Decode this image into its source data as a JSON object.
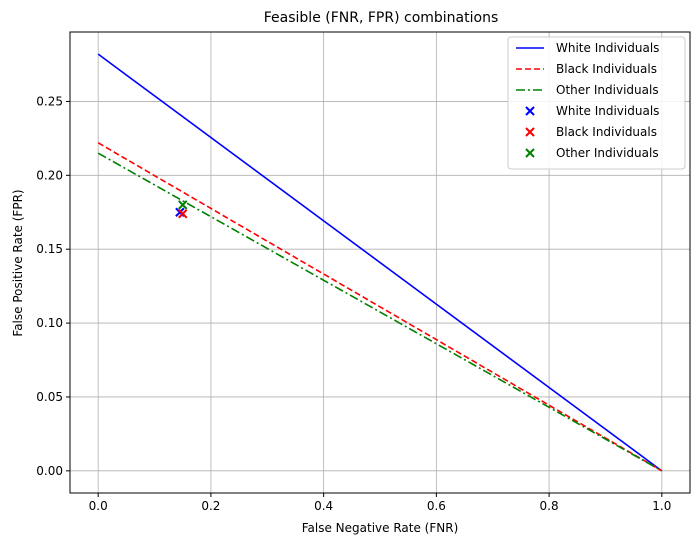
{
  "chart_data": {
    "type": "line",
    "title": "Feasible (FNR, FPR) combinations",
    "xlabel": "False Negative Rate (FNR)",
    "ylabel": "False Positive Rate (FPR)",
    "xlim": [
      -0.05,
      1.05
    ],
    "ylim": [
      -0.015,
      0.297
    ],
    "xticks": [
      0.0,
      0.2,
      0.4,
      0.6,
      0.8,
      1.0
    ],
    "xtick_labels": [
      "0.0",
      "0.2",
      "0.4",
      "0.6",
      "0.8",
      "1.0"
    ],
    "yticks": [
      0.0,
      0.05,
      0.1,
      0.15,
      0.2,
      0.25
    ],
    "ytick_labels": [
      "0.00",
      "0.05",
      "0.10",
      "0.15",
      "0.20",
      "0.25"
    ],
    "grid": true,
    "legend_position": "top-right",
    "series": [
      {
        "name": "White Individuals",
        "kind": "line",
        "style": "solid",
        "color": "#0000ff",
        "x": [
          0.0,
          1.0
        ],
        "y": [
          0.282,
          0.0
        ]
      },
      {
        "name": "Black Individuals",
        "kind": "line",
        "style": "dashed",
        "color": "#ff0000",
        "x": [
          0.0,
          1.0
        ],
        "y": [
          0.222,
          0.0
        ]
      },
      {
        "name": "Other Individuals",
        "kind": "line",
        "style": "dashdot",
        "color": "#008000",
        "x": [
          0.0,
          1.0
        ],
        "y": [
          0.215,
          0.0
        ]
      },
      {
        "name": "White Individuals",
        "kind": "scatter",
        "marker": "x",
        "color": "#0000ff",
        "x": [
          0.145
        ],
        "y": [
          0.175
        ]
      },
      {
        "name": "Black Individuals",
        "kind": "scatter",
        "marker": "x",
        "color": "#ff0000",
        "x": [
          0.15
        ],
        "y": [
          0.174
        ]
      },
      {
        "name": "Other Individuals",
        "kind": "scatter",
        "marker": "x",
        "color": "#008000",
        "x": [
          0.15
        ],
        "y": [
          0.18
        ]
      }
    ]
  }
}
